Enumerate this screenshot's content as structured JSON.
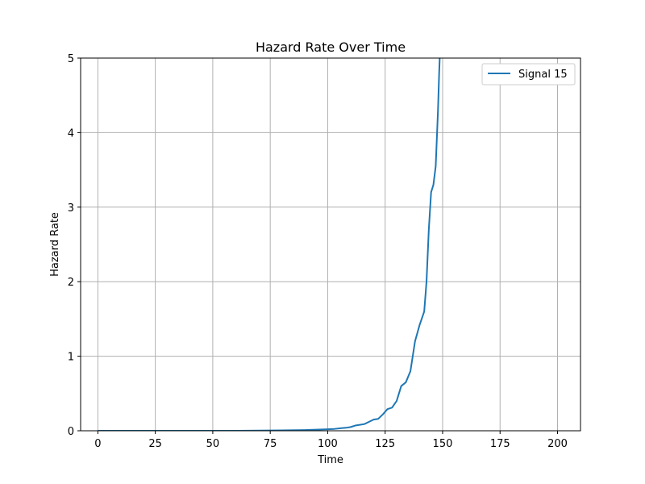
{
  "chart_data": {
    "type": "line",
    "title": "Hazard Rate Over Time",
    "xlabel": "Time",
    "ylabel": "Hazard Rate",
    "xlim": [
      -7.5,
      210
    ],
    "ylim": [
      0,
      5
    ],
    "xticks": [
      0,
      25,
      50,
      75,
      100,
      125,
      150,
      175,
      200
    ],
    "yticks": [
      0,
      1,
      2,
      3,
      4,
      5
    ],
    "grid": true,
    "legend_position": "top-right",
    "series": [
      {
        "name": "Signal 15",
        "color": "#1f77b4",
        "x": [
          0,
          20,
          40,
          60,
          80,
          90,
          95,
          100,
          103,
          106,
          108,
          110,
          112,
          114,
          116,
          118,
          120,
          122,
          124,
          126,
          128,
          130,
          132,
          134,
          136,
          138,
          140,
          142,
          143,
          144,
          145,
          146,
          147,
          148,
          148.5,
          149,
          149.5
        ],
        "y": [
          0.0,
          0.0,
          0.0,
          0.0,
          0.005,
          0.01,
          0.015,
          0.02,
          0.025,
          0.035,
          0.04,
          0.05,
          0.07,
          0.08,
          0.09,
          0.12,
          0.15,
          0.16,
          0.22,
          0.29,
          0.31,
          0.4,
          0.6,
          0.65,
          0.8,
          1.2,
          1.42,
          1.6,
          2.0,
          2.7,
          3.2,
          3.3,
          3.55,
          4.3,
          4.8,
          5.2,
          5.8
        ]
      }
    ]
  }
}
